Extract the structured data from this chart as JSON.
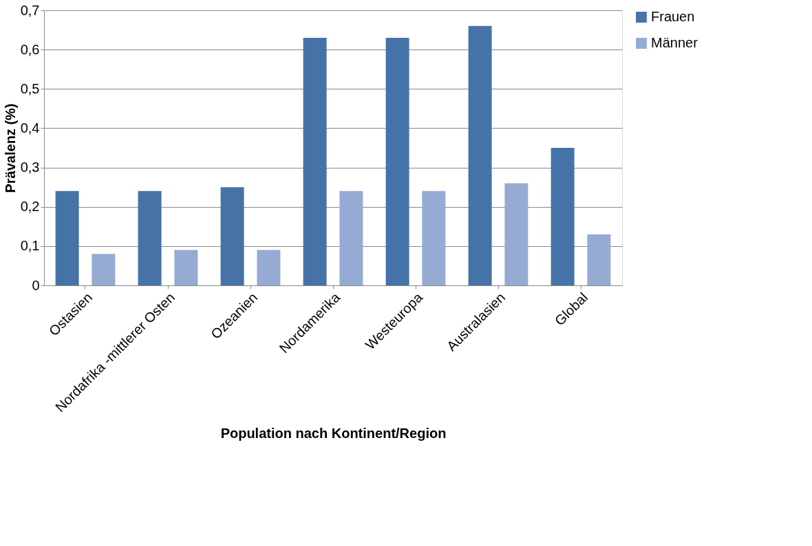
{
  "chart_data": {
    "type": "bar",
    "xlabel": "Population nach Kontinent/Region",
    "ylabel": "Prävalenz (%)",
    "categories": [
      "Ostasien",
      "Nordafrika -mittlerer Osten",
      "Ozeanien",
      "Nordamerika",
      "Westeuropa",
      "Australasien",
      "Global"
    ],
    "series": [
      {
        "name": "Frauen",
        "color": "#4673a7",
        "values": [
          0.24,
          0.24,
          0.25,
          0.63,
          0.63,
          0.66,
          0.35
        ]
      },
      {
        "name": "Männer",
        "color": "#95abd3",
        "values": [
          0.08,
          0.09,
          0.09,
          0.24,
          0.24,
          0.26,
          0.13
        ]
      }
    ],
    "ylim": [
      0,
      0.7
    ],
    "yticks": [
      0,
      {
        "value": 0.1,
        "label": "0,1"
      },
      {
        "value": 0.2,
        "label": "0,2"
      },
      {
        "value": 0.3,
        "label": "0,3"
      },
      {
        "value": 0.4,
        "label": "0,4"
      },
      {
        "value": 0.5,
        "label": "0,5"
      },
      {
        "value": 0.6,
        "label": "0,6"
      },
      {
        "value": 0.7,
        "label": "0,7"
      }
    ],
    "grid": "y",
    "legend": "right"
  }
}
